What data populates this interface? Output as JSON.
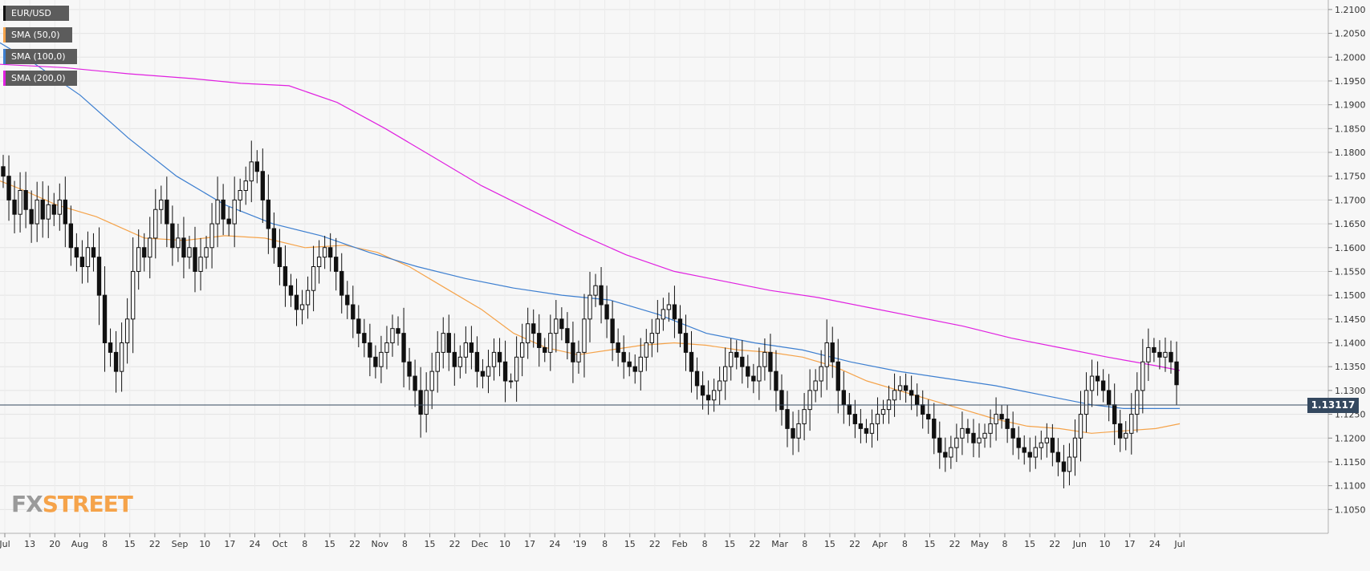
{
  "chart_data": {
    "type": "candlestick",
    "symbol": "EUR/USD",
    "legend": [
      {
        "label": "EUR/USD",
        "color": "#111111"
      },
      {
        "label": "SMA (50,0)",
        "color": "#f5a34a"
      },
      {
        "label": "SMA (100,0)",
        "color": "#3d7fd0"
      },
      {
        "label": "SMA (200,0)",
        "color": "#e020e0"
      }
    ],
    "ylim": [
      1.1,
      1.212
    ],
    "yticks": [
      "1.2100",
      "1.2050",
      "1.2000",
      "1.1950",
      "1.1900",
      "1.1850",
      "1.1800",
      "1.1750",
      "1.1700",
      "1.1650",
      "1.1600",
      "1.1550",
      "1.1500",
      "1.1450",
      "1.1400",
      "1.1350",
      "1.1300",
      "1.1250",
      "1.1200",
      "1.1150",
      "1.1100",
      "1.1050"
    ],
    "xticks": [
      "Jul",
      "13",
      "20",
      "Aug",
      "8",
      "15",
      "22",
      "Sep",
      "10",
      "17",
      "24",
      "Oct",
      "8",
      "15",
      "22",
      "Nov",
      "8",
      "15",
      "22",
      "Dec",
      "10",
      "17",
      "24",
      "'19",
      "8",
      "15",
      "22",
      "Feb",
      "8",
      "15",
      "22",
      "Mar",
      "8",
      "15",
      "22",
      "Apr",
      "8",
      "15",
      "22",
      "May",
      "8",
      "15",
      "22",
      "Jun",
      "10",
      "17",
      "24",
      "Jul"
    ],
    "current_price": 1.13117,
    "current_price_label": "1.13117",
    "close_path": [
      1.175,
      1.17,
      1.167,
      1.172,
      1.168,
      1.165,
      1.17,
      1.166,
      1.169,
      1.167,
      1.17,
      1.165,
      1.16,
      1.158,
      1.156,
      1.16,
      1.158,
      1.15,
      1.14,
      1.138,
      1.134,
      1.14,
      1.145,
      1.155,
      1.16,
      1.158,
      1.162,
      1.168,
      1.17,
      1.165,
      1.16,
      1.162,
      1.158,
      1.16,
      1.155,
      1.158,
      1.16,
      1.165,
      1.17,
      1.166,
      1.165,
      1.17,
      1.172,
      1.174,
      1.178,
      1.176,
      1.17,
      1.164,
      1.16,
      1.156,
      1.152,
      1.15,
      1.147,
      1.148,
      1.151,
      1.156,
      1.158,
      1.16,
      1.158,
      1.155,
      1.15,
      1.148,
      1.145,
      1.142,
      1.14,
      1.137,
      1.135,
      1.138,
      1.14,
      1.143,
      1.142,
      1.136,
      1.133,
      1.13,
      1.125,
      1.13,
      1.134,
      1.138,
      1.142,
      1.138,
      1.135,
      1.137,
      1.14,
      1.138,
      1.134,
      1.133,
      1.135,
      1.138,
      1.136,
      1.132,
      1.132,
      1.137,
      1.14,
      1.144,
      1.142,
      1.139,
      1.138,
      1.142,
      1.145,
      1.143,
      1.14,
      1.136,
      1.138,
      1.145,
      1.15,
      1.152,
      1.148,
      1.145,
      1.14,
      1.138,
      1.136,
      1.135,
      1.134,
      1.137,
      1.14,
      1.142,
      1.145,
      1.147,
      1.148,
      1.145,
      1.142,
      1.138,
      1.134,
      1.131,
      1.129,
      1.128,
      1.13,
      1.132,
      1.135,
      1.138,
      1.137,
      1.135,
      1.133,
      1.132,
      1.135,
      1.138,
      1.134,
      1.13,
      1.126,
      1.122,
      1.12,
      1.123,
      1.126,
      1.13,
      1.132,
      1.135,
      1.14,
      1.136,
      1.13,
      1.127,
      1.125,
      1.123,
      1.122,
      1.121,
      1.123,
      1.125,
      1.126,
      1.128,
      1.13,
      1.131,
      1.13,
      1.129,
      1.127,
      1.125,
      1.124,
      1.12,
      1.117,
      1.116,
      1.118,
      1.12,
      1.122,
      1.121,
      1.119,
      1.12,
      1.121,
      1.123,
      1.125,
      1.124,
      1.122,
      1.12,
      1.118,
      1.117,
      1.116,
      1.118,
      1.119,
      1.12,
      1.117,
      1.115,
      1.113,
      1.116,
      1.12,
      1.125,
      1.13,
      1.133,
      1.132,
      1.13,
      1.127,
      1.123,
      1.12,
      1.121,
      1.125,
      1.13,
      1.136,
      1.139,
      1.138,
      1.137,
      1.138,
      1.136,
      1.1312
    ],
    "sma50": [
      [
        0,
        1.174
      ],
      [
        30,
        1.172
      ],
      [
        70,
        1.169
      ],
      [
        120,
        1.1665
      ],
      [
        180,
        1.162
      ],
      [
        230,
        1.1615
      ],
      [
        280,
        1.1625
      ],
      [
        330,
        1.162
      ],
      [
        380,
        1.16
      ],
      [
        430,
        1.1605
      ],
      [
        470,
        1.159
      ],
      [
        510,
        1.156
      ],
      [
        550,
        1.152
      ],
      [
        600,
        1.147
      ],
      [
        640,
        1.142
      ],
      [
        680,
        1.139
      ],
      [
        720,
        1.1375
      ],
      [
        760,
        1.1385
      ],
      [
        800,
        1.1395
      ],
      [
        840,
        1.14
      ],
      [
        880,
        1.1395
      ],
      [
        920,
        1.1385
      ],
      [
        960,
        1.138
      ],
      [
        1000,
        1.137
      ],
      [
        1040,
        1.135
      ],
      [
        1080,
        1.132
      ],
      [
        1120,
        1.13
      ],
      [
        1160,
        1.128
      ],
      [
        1200,
        1.126
      ],
      [
        1240,
        1.124
      ],
      [
        1280,
        1.1225
      ],
      [
        1320,
        1.122
      ],
      [
        1360,
        1.121
      ],
      [
        1400,
        1.1215
      ],
      [
        1440,
        1.122
      ],
      [
        1470,
        1.123
      ]
    ],
    "sma100": [
      [
        0,
        1.203
      ],
      [
        40,
        1.199
      ],
      [
        100,
        1.192
      ],
      [
        160,
        1.183
      ],
      [
        220,
        1.175
      ],
      [
        280,
        1.169
      ],
      [
        340,
        1.165
      ],
      [
        400,
        1.1625
      ],
      [
        460,
        1.159
      ],
      [
        520,
        1.156
      ],
      [
        580,
        1.1535
      ],
      [
        640,
        1.1515
      ],
      [
        700,
        1.15
      ],
      [
        760,
        1.149
      ],
      [
        820,
        1.146
      ],
      [
        880,
        1.142
      ],
      [
        940,
        1.14
      ],
      [
        1000,
        1.1385
      ],
      [
        1060,
        1.136
      ],
      [
        1120,
        1.134
      ],
      [
        1180,
        1.1325
      ],
      [
        1240,
        1.131
      ],
      [
        1300,
        1.129
      ],
      [
        1360,
        1.127
      ],
      [
        1400,
        1.1262
      ],
      [
        1440,
        1.1262
      ],
      [
        1470,
        1.1262
      ]
    ],
    "sma200": [
      [
        0,
        1.1985
      ],
      [
        80,
        1.1978
      ],
      [
        160,
        1.1965
      ],
      [
        240,
        1.1955
      ],
      [
        300,
        1.1945
      ],
      [
        360,
        1.194
      ],
      [
        420,
        1.1905
      ],
      [
        480,
        1.185
      ],
      [
        540,
        1.179
      ],
      [
        600,
        1.173
      ],
      [
        660,
        1.168
      ],
      [
        720,
        1.163
      ],
      [
        780,
        1.1585
      ],
      [
        840,
        1.155
      ],
      [
        900,
        1.153
      ],
      [
        960,
        1.151
      ],
      [
        1020,
        1.1495
      ],
      [
        1080,
        1.1475
      ],
      [
        1140,
        1.1455
      ],
      [
        1200,
        1.1435
      ],
      [
        1260,
        1.141
      ],
      [
        1320,
        1.139
      ],
      [
        1380,
        1.137
      ],
      [
        1440,
        1.1352
      ],
      [
        1470,
        1.1342
      ]
    ]
  },
  "branding": {
    "fx": "FX",
    "street": "STREET"
  }
}
